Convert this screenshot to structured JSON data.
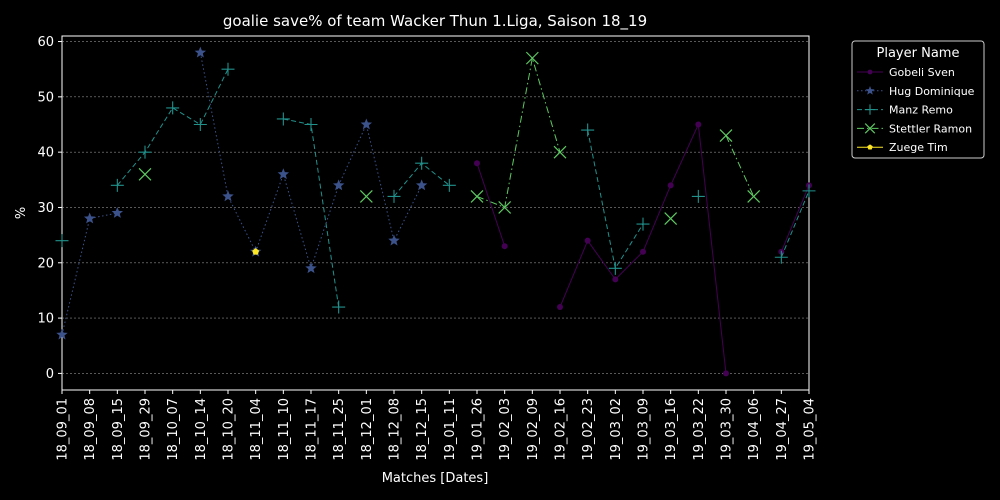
{
  "chart_data": {
    "type": "line",
    "title": "goalie save% of team Wacker Thun 1.Liga, Saison 18_19",
    "xlabel": "Matches [Dates]",
    "ylabel": "%",
    "ylim": [
      -3,
      61
    ],
    "yticks": [
      0,
      10,
      20,
      30,
      40,
      50,
      60
    ],
    "grid": "horizontal dashed",
    "legend_title": "Player Name",
    "legend_position": "outside-right",
    "categories": [
      "18_09_01",
      "18_09_08",
      "18_09_15",
      "18_09_29",
      "18_10_07",
      "18_10_14",
      "18_10_20",
      "18_11_04",
      "18_11_10",
      "18_11_17",
      "18_11_25",
      "18_12_01",
      "18_12_08",
      "18_12_15",
      "19_01_11",
      "19_01_26",
      "19_02_03",
      "19_02_09",
      "19_02_16",
      "19_02_23",
      "19_03_02",
      "19_03_09",
      "19_03_16",
      "19_03_22",
      "19_03_30",
      "19_04_06",
      "19_04_27",
      "19_05_04"
    ],
    "series": [
      {
        "name": "Gobeli Sven",
        "color": "#440154",
        "marker": "circle",
        "linestyle": "solid",
        "values": [
          null,
          null,
          null,
          null,
          null,
          null,
          null,
          null,
          null,
          null,
          null,
          null,
          null,
          null,
          null,
          38,
          23,
          null,
          12,
          24,
          17,
          22,
          34,
          45,
          0,
          null,
          22,
          34
        ]
      },
      {
        "name": "Hug Dominique",
        "color": "#3b528b",
        "marker": "star",
        "linestyle": "dotted",
        "values": [
          7,
          28,
          29,
          null,
          null,
          58,
          32,
          22,
          36,
          19,
          34,
          45,
          24,
          34,
          null,
          null,
          null,
          null,
          null,
          null,
          null,
          null,
          null,
          null,
          null,
          null,
          null,
          null
        ]
      },
      {
        "name": "Manz Remo",
        "color": "#21918c",
        "marker": "plus",
        "linestyle": "dashed",
        "values": [
          24,
          null,
          34,
          40,
          48,
          45,
          55,
          null,
          46,
          45,
          12,
          null,
          32,
          38,
          34,
          null,
          null,
          null,
          null,
          44,
          19,
          27,
          null,
          32,
          null,
          null,
          21,
          33
        ]
      },
      {
        "name": "Stettler Ramon",
        "color": "#5ec962",
        "marker": "x",
        "linestyle": "dashdot",
        "values": [
          null,
          null,
          null,
          36,
          null,
          null,
          null,
          null,
          null,
          null,
          null,
          32,
          null,
          null,
          null,
          32,
          30,
          57,
          40,
          null,
          null,
          null,
          28,
          null,
          43,
          32,
          null,
          null
        ]
      },
      {
        "name": "Zuege Tim",
        "color": "#fde725",
        "marker": "pentagon",
        "linestyle": "solid",
        "values": [
          null,
          null,
          null,
          null,
          null,
          null,
          null,
          22,
          null,
          null,
          null,
          null,
          null,
          null,
          null,
          null,
          null,
          null,
          null,
          null,
          null,
          null,
          null,
          null,
          null,
          null,
          null,
          null
        ]
      }
    ]
  }
}
